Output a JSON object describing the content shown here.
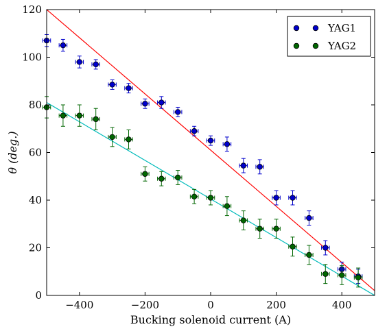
{
  "chart_data": {
    "type": "scatter",
    "xlabel": "Bucking solenoid current (A)",
    "ylabel": "θ (deg.)",
    "xlim": [
      -500,
      500
    ],
    "ylim": [
      0,
      120
    ],
    "x_ticks": [
      -400,
      -200,
      0,
      200,
      400
    ],
    "x_tick_labels": [
      "−400",
      "−200",
      "0",
      "200",
      "400"
    ],
    "y_ticks": [
      0,
      20,
      40,
      60,
      80,
      100,
      120
    ],
    "y_tick_labels": [
      "0",
      "20",
      "40",
      "60",
      "80",
      "100",
      "120"
    ],
    "grid": false,
    "legend_position": "top-right",
    "series": [
      {
        "name": "YAG1",
        "color": "#0000cc",
        "x": [
          -500,
          -450,
          -400,
          -350,
          -300,
          -250,
          -200,
          -150,
          -100,
          -50,
          0,
          50,
          100,
          150,
          200,
          250,
          300,
          350,
          400,
          450
        ],
        "y": [
          107,
          105,
          98,
          97,
          88.5,
          87,
          80.5,
          81,
          77,
          69,
          65,
          63.5,
          54.5,
          54,
          41,
          41,
          32.5,
          20,
          11,
          8
        ],
        "yerr": [
          2.5,
          2.5,
          2.5,
          2,
          2,
          2,
          2,
          2.5,
          2,
          2,
          2,
          3,
          3,
          3,
          3,
          3,
          3,
          3,
          3,
          3
        ],
        "xerr": [
          12,
          12,
          12,
          12,
          12,
          12,
          12,
          12,
          12,
          12,
          12,
          12,
          12,
          12,
          12,
          12,
          12,
          12,
          12,
          12
        ],
        "fit": {
          "color": "#ff0000",
          "x": [
            -500,
            500
          ],
          "y": [
            120,
            2
          ]
        }
      },
      {
        "name": "YAG2",
        "color": "#006600",
        "x": [
          -500,
          -450,
          -400,
          -350,
          -300,
          -250,
          -200,
          -150,
          -100,
          -50,
          0,
          50,
          100,
          150,
          200,
          250,
          300,
          350,
          400,
          450
        ],
        "y": [
          79,
          75.5,
          75.5,
          74,
          66.5,
          65.5,
          51,
          49,
          49.5,
          41.5,
          41,
          37.5,
          31.5,
          28,
          28,
          20.5,
          17,
          9,
          8.5,
          7.5
        ],
        "yerr": [
          4.5,
          4.5,
          4.5,
          4.5,
          4,
          4,
          3,
          3,
          3,
          3,
          3,
          4,
          4,
          4,
          4,
          4,
          4,
          4,
          4,
          4
        ],
        "xerr": [
          12,
          12,
          12,
          12,
          12,
          12,
          12,
          12,
          12,
          12,
          12,
          12,
          12,
          12,
          12,
          12,
          12,
          12,
          12,
          12
        ],
        "fit": {
          "color": "#00bbbb",
          "x": [
            -500,
            500
          ],
          "y": [
            81,
            0
          ]
        }
      }
    ]
  }
}
